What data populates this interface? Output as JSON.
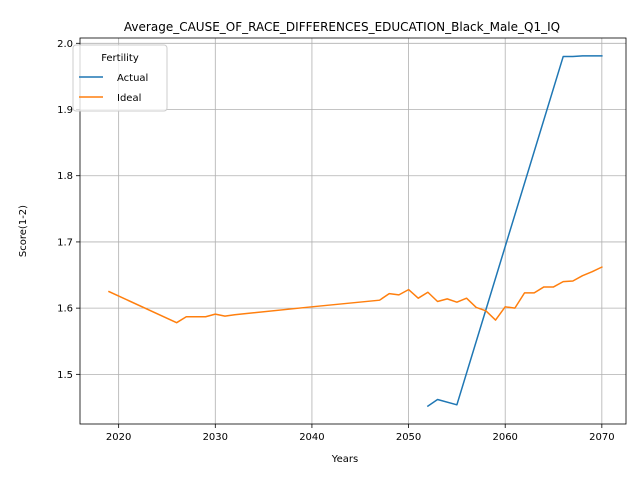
{
  "chart_data": {
    "type": "line",
    "title": "Average_CAUSE_OF_RACE_DIFFERENCES_EDUCATION_Black_Male_Q1_IQ",
    "xlabel": "Years",
    "ylabel": "Score(1-2)",
    "xlim": [
      2016,
      2072.5
    ],
    "ylim": [
      1.425,
      2.008
    ],
    "xticks": [
      2020,
      2030,
      2040,
      2050,
      2060,
      2070
    ],
    "yticks": [
      1.5,
      1.6,
      1.7,
      1.8,
      1.9,
      2.0
    ],
    "xtick_labels": [
      "2020",
      "2030",
      "2040",
      "2050",
      "2060",
      "2070"
    ],
    "ytick_labels": [
      "1.5",
      "1.6",
      "1.7",
      "1.8",
      "1.9",
      "2.0"
    ],
    "grid": true,
    "legend": {
      "title": "Fertility",
      "placement": "upper-left"
    },
    "series": [
      {
        "name": "Actual",
        "color": "#1f77b4",
        "points": [
          [
            2052,
            1.452
          ],
          [
            2053,
            1.462
          ],
          [
            2055,
            1.454
          ],
          [
            2066,
            1.98
          ],
          [
            2067,
            1.98
          ],
          [
            2068,
            1.981
          ],
          [
            2070,
            1.981
          ]
        ]
      },
      {
        "name": "Ideal",
        "color": "#ff7f0e",
        "points": [
          [
            2019,
            1.625
          ],
          [
            2026,
            1.578
          ],
          [
            2027,
            1.587
          ],
          [
            2028,
            1.587
          ],
          [
            2029,
            1.587
          ],
          [
            2030,
            1.591
          ],
          [
            2031,
            1.588
          ],
          [
            2032,
            1.59
          ],
          [
            2040,
            1.602
          ],
          [
            2047,
            1.612
          ],
          [
            2048,
            1.622
          ],
          [
            2049,
            1.62
          ],
          [
            2050,
            1.628
          ],
          [
            2051,
            1.615
          ],
          [
            2052,
            1.624
          ],
          [
            2053,
            1.61
          ],
          [
            2054,
            1.614
          ],
          [
            2055,
            1.609
          ],
          [
            2056,
            1.615
          ],
          [
            2057,
            1.601
          ],
          [
            2058,
            1.596
          ],
          [
            2059,
            1.582
          ],
          [
            2060,
            1.602
          ],
          [
            2061,
            1.6
          ],
          [
            2062,
            1.623
          ],
          [
            2063,
            1.623
          ],
          [
            2064,
            1.632
          ],
          [
            2065,
            1.632
          ],
          [
            2066,
            1.64
          ],
          [
            2067,
            1.641
          ],
          [
            2068,
            1.649
          ],
          [
            2069,
            1.655
          ],
          [
            2070,
            1.662
          ]
        ]
      }
    ]
  }
}
